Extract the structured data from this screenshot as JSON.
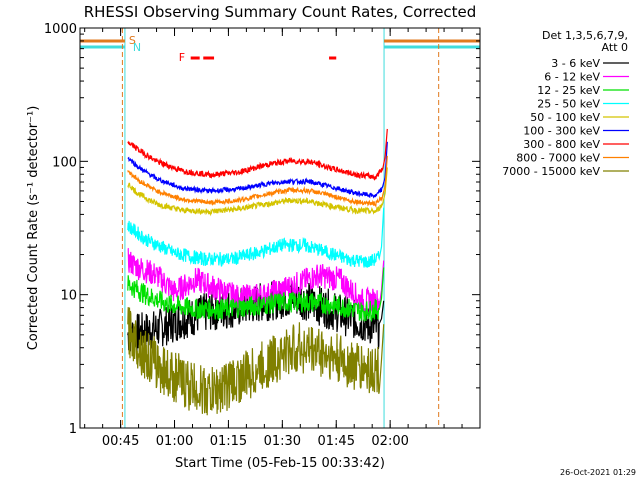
{
  "chart_data": {
    "type": "line",
    "title": "RHESSI Observing Summary Count Rates, Corrected",
    "xlabel": "Start Time (05-Feb-15 00:33:42)",
    "ylabel": "Corrected Count Rate (s⁻¹ detector⁻¹)",
    "y_scale": "log",
    "ylim": [
      1,
      1000
    ],
    "y_ticks": [
      "1",
      "10",
      "100",
      "1000"
    ],
    "xlim_minutes": [
      33.7,
      145.0
    ],
    "x_ticks": [
      {
        "minute": 45,
        "label": "00:45"
      },
      {
        "minute": 60,
        "label": "01:00"
      },
      {
        "minute": 75,
        "label": "01:15"
      },
      {
        "minute": 90,
        "label": "01:30"
      },
      {
        "minute": 105,
        "label": "01:45"
      },
      {
        "minute": 120,
        "label": "02:00"
      }
    ],
    "legend_header": [
      "Det 1,3,5,6,7,9,",
      "Att 0"
    ],
    "legend_position": "right",
    "state_labels": {
      "saa": "S",
      "night": "N",
      "flare": "F"
    },
    "state_colors": {
      "saa": "#e07a1f",
      "night": "#3fdcdc",
      "flare": "#ff0000"
    },
    "night_intervals": [
      [
        33.7,
        46.2
      ],
      [
        118.3,
        145.0
      ]
    ],
    "saa_lines": [
      45.5,
      133.5
    ],
    "flare_intervals": [
      [
        64.5,
        67.0
      ],
      [
        68.0,
        71.0
      ],
      [
        103.0,
        105.0
      ]
    ],
    "series": [
      {
        "name": "3 - 6 keV",
        "color": "#000000",
        "x": [
          47,
          55,
          62,
          70,
          78,
          86,
          94,
          102,
          110,
          117
        ],
        "values": [
          5.0,
          5.5,
          6.5,
          7.5,
          8.0,
          9.0,
          9.5,
          8.0,
          6.5,
          5.5
        ]
      },
      {
        "name": "6 - 12 keV",
        "color": "#ff00ff",
        "x": [
          47,
          50,
          55,
          60,
          66,
          72,
          78,
          86,
          94,
          100,
          106,
          112,
          117
        ],
        "values": [
          18,
          16,
          14,
          10.5,
          13,
          11,
          9.5,
          10,
          12,
          14,
          13,
          9,
          9
        ]
      },
      {
        "name": "12 - 25 keV",
        "color": "#00e000",
        "x": [
          47,
          52,
          58,
          66,
          74,
          82,
          90,
          98,
          106,
          112,
          117
        ],
        "values": [
          12,
          10,
          8.5,
          7.8,
          7.8,
          8.2,
          8.8,
          8.8,
          8.2,
          7.5,
          7.8
        ]
      },
      {
        "name": "25 - 50 keV",
        "color": "#00ffff",
        "x": [
          47,
          52,
          60,
          68,
          76,
          84,
          90,
          96,
          102,
          108,
          114,
          117
        ],
        "values": [
          33,
          26,
          20.5,
          18.5,
          18.5,
          21,
          23.5,
          23.5,
          21,
          18.5,
          17.5,
          19
        ]
      },
      {
        "name": "50 - 100 keV",
        "color": "#d4c400",
        "x": [
          47,
          50,
          55,
          62,
          70,
          78,
          86,
          92,
          98,
          104,
          110,
          116,
          118
        ],
        "values": [
          68,
          57,
          48,
          43,
          42,
          44,
          48,
          51,
          50,
          46,
          43,
          42,
          48
        ]
      },
      {
        "name": "100 - 300 keV",
        "color": "#0000ff",
        "x": [
          47,
          50,
          55,
          62,
          70,
          78,
          86,
          92,
          98,
          104,
          110,
          116,
          118
        ],
        "values": [
          107,
          90,
          74,
          63,
          60,
          62,
          68,
          71,
          70,
          64,
          58,
          55,
          63
        ]
      },
      {
        "name": "300 - 800 keV",
        "color": "#ff0000",
        "x": [
          47,
          50,
          55,
          62,
          70,
          78,
          86,
          92,
          98,
          104,
          110,
          116,
          118
        ],
        "values": [
          140,
          122,
          100,
          85,
          79,
          83,
          95,
          101,
          99,
          88,
          80,
          76,
          90
        ]
      },
      {
        "name": "800 - 7000 keV",
        "color": "#ff8000",
        "x": [
          47,
          50,
          55,
          62,
          70,
          78,
          86,
          92,
          98,
          104,
          110,
          116,
          118
        ],
        "values": [
          85,
          72,
          60,
          52,
          49,
          51,
          57,
          61,
          60,
          55,
          50,
          48,
          54
        ]
      },
      {
        "name": "7000 - 15000 keV",
        "color": "#808000",
        "x": [
          47,
          52,
          58,
          64,
          70,
          76,
          82,
          88,
          94,
          100,
          106,
          112,
          117
        ],
        "values": [
          5.5,
          3.5,
          2.6,
          2.1,
          1.8,
          2.2,
          2.6,
          3.3,
          4.0,
          3.8,
          3.2,
          2.8,
          2.7
        ]
      }
    ],
    "series_edge_values": [
      {
        "name": "3 - 6 keV",
        "value": 9
      },
      {
        "name": "6 - 12 keV",
        "value": 18
      },
      {
        "name": "12 - 25 keV",
        "value": 16
      },
      {
        "name": "25 - 50 keV",
        "value": 45
      },
      {
        "name": "50 - 100 keV",
        "value": 90
      },
      {
        "name": "100 - 300 keV",
        "value": 140
      },
      {
        "name": "300 - 800 keV",
        "value": 175
      },
      {
        "name": "800 - 7000 keV",
        "value": 110
      },
      {
        "name": "7000 - 15000 keV",
        "value": 6
      }
    ]
  },
  "footer": {
    "timestamp": "26-Oct-2021 01:29"
  }
}
